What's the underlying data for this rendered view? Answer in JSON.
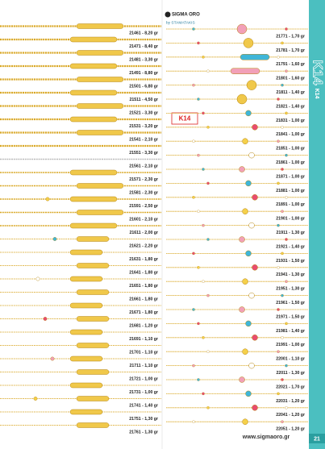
{
  "header": {
    "brand": "SIGMA ORO",
    "byline": "by STAMATAKIS"
  },
  "badge": "K14",
  "side_tab": {
    "large": "K14",
    "small": "K14"
  },
  "left_items": [
    "21461 - 8,20 gr",
    "21471 - 8,40 gr",
    "21481 - 3,30 gr",
    "21491 - 8,80 gr",
    "21501 - 6,80 gr",
    "21511 - 4,50 gr",
    "21521 - 3,30 gr",
    "21531 - 3,20 gr",
    "21541 - 2,10 gr",
    "21551 - 3,30 gr",
    "21561 - 2,10 gr",
    "21571 - 2,30 gr",
    "21581 - 2,30 gr",
    "21591 - 2,50 gr",
    "21601 - 2,10 gr",
    "21611 - 2,00 gr",
    "21621 - 2,20 gr",
    "21631 - 1,80 gr",
    "21641 - 1,80 gr",
    "21651 - 1,80 gr",
    "21661 - 1,80 gr",
    "21671 - 1,80 gr",
    "21681 - 1,20 gr",
    "21691 - 1,10 gr",
    "21701 - 1,10 gr",
    "21711 - 1,10 gr",
    "21721 - 1,00 gr",
    "21731 - 1,00 gr",
    "21741 - 1,40 gr",
    "21751 - 1,30 gr",
    "21761 - 1,30 gr"
  ],
  "right_items": [
    "21771 - 1,70 gr",
    "21781 - 1,70 gr",
    "21791 - 1,60 gr",
    "21801 - 1,60 gr",
    "21811 - 1,40 gr",
    "21821 - 1,40 gr",
    "21831 - 1,00 gr",
    "21841 - 1,00 gr",
    "21851 - 1,00 gr",
    "21861 - 1,00 gr",
    "21871 - 1,00 gr",
    "21881 - 1,00 gr",
    "21891 - 1,00 gr",
    "21901 - 1,00 gr",
    "21911 - 1,30 gr",
    "21921 - 1,40 gr",
    "21931 - 1,50 gr",
    "21941 - 1,30 gr",
    "21951 - 1,30 gr",
    "21961 - 1,50 gr",
    "21971 - 1,50 gr",
    "21981 - 1,40 gr",
    "21991 - 1,00 gr",
    "22001 - 1,10 gr",
    "22011 - 1,30 gr",
    "22021 - 1,70 gr",
    "22031 - 1,20 gr",
    "22041 - 1,20 gr",
    "22051 - 1,20 gr"
  ],
  "footer": {
    "url": "www.sigmaoro.gr",
    "page": "21"
  }
}
